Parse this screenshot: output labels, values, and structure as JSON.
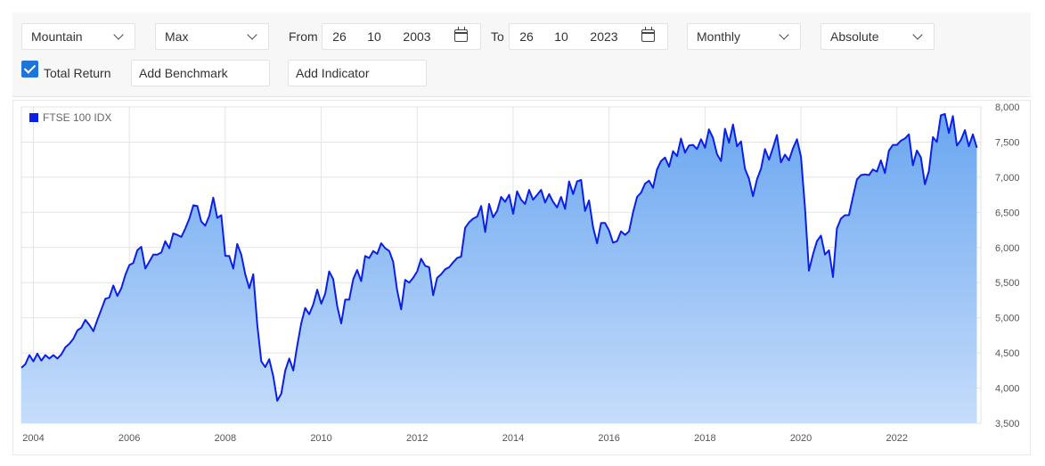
{
  "controls": {
    "chart_style": "Mountain",
    "period": "Max",
    "from_label": "From",
    "from_day": "26",
    "from_month": "10",
    "from_year": "2003",
    "to_label": "To",
    "to_day": "26",
    "to_month": "10",
    "to_year": "2023",
    "frequency": "Monthly",
    "scale": "Absolute",
    "total_return_label": "Total Return",
    "total_return_checked": true,
    "add_benchmark": "Add Benchmark",
    "add_indicator": "Add Indicator"
  },
  "colors": {
    "line": "#0a1fe8",
    "fill_top": "#6aa6f0",
    "fill_bottom": "#c6ddfb",
    "legend_swatch": "#0a1fe8",
    "checkbox": "#1f74d8"
  },
  "icons": [
    "chevron-down-icon",
    "calendar-icon",
    "checkbox-checked-icon"
  ],
  "chart_data": {
    "type": "area",
    "title": "",
    "xlabel": "",
    "ylabel": "",
    "legend_position": "top-left",
    "grid": true,
    "ylim": [
      3500,
      8000
    ],
    "xlim": [
      "2003-10",
      "2023-10"
    ],
    "y_ticks": [
      "8,000",
      "7,500",
      "7,000",
      "6,500",
      "6,000",
      "5,500",
      "5,000",
      "4,500",
      "4,000",
      "3,500"
    ],
    "y_tick_values": [
      8000,
      7500,
      7000,
      6500,
      6000,
      5500,
      5000,
      4500,
      4000,
      3500
    ],
    "x_ticks": [
      "2004",
      "2006",
      "2008",
      "2010",
      "2012",
      "2014",
      "2016",
      "2018",
      "2020",
      "2022"
    ],
    "x_tick_years": [
      2004,
      2006,
      2008,
      2010,
      2012,
      2014,
      2016,
      2018,
      2020,
      2022
    ],
    "series": [
      {
        "name": "FTSE 100 IDX",
        "x_start": "2003-10",
        "x_step": "monthly",
        "values": [
          4290,
          4340,
          4470,
          4380,
          4490,
          4390,
          4470,
          4420,
          4470,
          4420,
          4480,
          4580,
          4630,
          4700,
          4820,
          4860,
          4970,
          4900,
          4810,
          4970,
          5120,
          5270,
          5290,
          5460,
          5310,
          5420,
          5610,
          5750,
          5780,
          5960,
          6010,
          5700,
          5800,
          5900,
          5900,
          5930,
          6090,
          5990,
          6200,
          6180,
          6150,
          6270,
          6410,
          6600,
          6590,
          6370,
          6310,
          6450,
          6710,
          6420,
          6460,
          5880,
          5880,
          5700,
          6050,
          5900,
          5620,
          5420,
          5620,
          4900,
          4380,
          4300,
          4410,
          4170,
          3820,
          3920,
          4250,
          4420,
          4250,
          4600,
          4920,
          5140,
          5050,
          5190,
          5400,
          5200,
          5340,
          5660,
          5550,
          5170,
          4920,
          5260,
          5260,
          5550,
          5680,
          5520,
          5880,
          5850,
          5950,
          5910,
          6060,
          5990,
          5950,
          5800,
          5390,
          5120,
          5540,
          5500,
          5570,
          5660,
          5840,
          5740,
          5720,
          5320,
          5570,
          5620,
          5690,
          5720,
          5790,
          5850,
          5870,
          6280,
          6360,
          6410,
          6440,
          6590,
          6220,
          6620,
          6430,
          6520,
          6720,
          6650,
          6750,
          6480,
          6800,
          6680,
          6620,
          6820,
          6680,
          6750,
          6820,
          6640,
          6760,
          6650,
          6570,
          6720,
          6550,
          6940,
          6760,
          6940,
          6960,
          6520,
          6670,
          6290,
          6060,
          6350,
          6350,
          6240,
          6070,
          6090,
          6230,
          6180,
          6230,
          6500,
          6720,
          6780,
          6910,
          6950,
          6850,
          7110,
          7230,
          7280,
          7150,
          7370,
          7300,
          7550,
          7350,
          7450,
          7460,
          7400,
          7540,
          7420,
          7680,
          7560,
          7330,
          7230,
          7690,
          7490,
          7750,
          7440,
          7510,
          7120,
          6980,
          6730,
          6970,
          7120,
          7400,
          7250,
          7420,
          7600,
          7210,
          7320,
          7240,
          7410,
          7540,
          7290,
          6580,
          5670,
          5900,
          6090,
          6170,
          5900,
          5960,
          5580,
          6270,
          6410,
          6460,
          6460,
          6720,
          6970,
          7030,
          7040,
          7030,
          7110,
          7080,
          7240,
          7060,
          7380,
          7460,
          7460,
          7520,
          7550,
          7610,
          7170,
          7380,
          7280,
          6900,
          7090,
          7570,
          7500,
          7880,
          7900,
          7630,
          7870,
          7450,
          7530,
          7670,
          7440,
          7610,
          7420
        ]
      }
    ]
  }
}
